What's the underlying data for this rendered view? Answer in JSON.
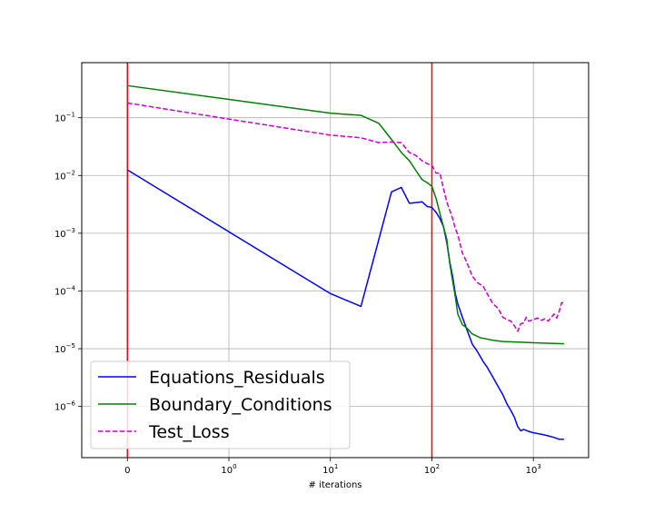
{
  "chart_data": {
    "type": "line",
    "title": "",
    "xlabel": "# iterations",
    "ylabel": "",
    "x_scale": "symlog",
    "y_scale": "log",
    "xlim": [
      -0.45,
      3500
    ],
    "ylim": [
      1.3e-07,
      0.9
    ],
    "grid": true,
    "legend_position": "lower-left",
    "x_ticks": [
      {
        "value": 0,
        "label": "0",
        "exp": ""
      },
      {
        "value": 1,
        "label": "10",
        "exp": "0"
      },
      {
        "value": 10,
        "label": "10",
        "exp": "1"
      },
      {
        "value": 100,
        "label": "10",
        "exp": "2"
      },
      {
        "value": 1000,
        "label": "10",
        "exp": "3"
      }
    ],
    "y_ticks": [
      {
        "value": 1e-06,
        "label": "10",
        "exp": "−6"
      },
      {
        "value": 1e-05,
        "label": "10",
        "exp": "−5"
      },
      {
        "value": 0.0001,
        "label": "10",
        "exp": "−4"
      },
      {
        "value": 0.001,
        "label": "10",
        "exp": "−3"
      },
      {
        "value": 0.01,
        "label": "10",
        "exp": "−2"
      },
      {
        "value": 0.1,
        "label": "10",
        "exp": "−1"
      }
    ],
    "vertical_lines": [
      {
        "x": 0,
        "color": "#ff0000"
      },
      {
        "x": 100,
        "color": "#ff0000"
      }
    ],
    "series": [
      {
        "name": "Equations_Residuals",
        "color": "#0000ff",
        "dash": "solid",
        "points": [
          [
            0,
            0.0125
          ],
          [
            10,
            9e-05
          ],
          [
            20,
            5.4e-05
          ],
          [
            40,
            0.0052
          ],
          [
            50,
            0.0062
          ],
          [
            60,
            0.0033
          ],
          [
            70,
            0.0034
          ],
          [
            80,
            0.0035
          ],
          [
            90,
            0.0029
          ],
          [
            100,
            0.0028
          ],
          [
            110,
            0.0023
          ],
          [
            120,
            0.0018
          ],
          [
            130,
            0.0013
          ],
          [
            140,
            0.0007
          ],
          [
            150,
            0.00032
          ],
          [
            160,
            0.00018
          ],
          [
            170,
            9e-05
          ],
          [
            180,
            6e-05
          ],
          [
            200,
            3.5e-05
          ],
          [
            220,
            2.2e-05
          ],
          [
            250,
            1.2e-05
          ],
          [
            280,
            9e-06
          ],
          [
            320,
            6e-06
          ],
          [
            350,
            4.8e-06
          ],
          [
            400,
            3.2e-06
          ],
          [
            450,
            2.2e-06
          ],
          [
            500,
            1.6e-06
          ],
          [
            550,
            1.1e-06
          ],
          [
            600,
            8.5e-07
          ],
          [
            650,
            6.5e-07
          ],
          [
            700,
            4.5e-07
          ],
          [
            750,
            3.8e-07
          ],
          [
            800,
            4e-07
          ],
          [
            900,
            3.7e-07
          ],
          [
            1000,
            3.5e-07
          ],
          [
            1200,
            3.3e-07
          ],
          [
            1400,
            3.1e-07
          ],
          [
            1600,
            2.9e-07
          ],
          [
            1800,
            2.7e-07
          ],
          [
            2000,
            2.7e-07
          ]
        ]
      },
      {
        "name": "Boundary_Conditions",
        "color": "#008000",
        "dash": "solid",
        "points": [
          [
            0,
            0.36
          ],
          [
            10,
            0.12
          ],
          [
            20,
            0.11
          ],
          [
            30,
            0.08
          ],
          [
            40,
            0.042
          ],
          [
            50,
            0.025
          ],
          [
            60,
            0.018
          ],
          [
            70,
            0.012
          ],
          [
            80,
            0.0085
          ],
          [
            90,
            0.0075
          ],
          [
            100,
            0.0065
          ],
          [
            110,
            0.004
          ],
          [
            120,
            0.0022
          ],
          [
            130,
            0.0013
          ],
          [
            140,
            0.0008
          ],
          [
            150,
            0.0003
          ],
          [
            160,
            0.00015
          ],
          [
            170,
            8e-05
          ],
          [
            180,
            4e-05
          ],
          [
            200,
            2.6e-05
          ],
          [
            220,
            2.3e-05
          ],
          [
            250,
            1.8e-05
          ],
          [
            300,
            1.55e-05
          ],
          [
            400,
            1.4e-05
          ],
          [
            500,
            1.33e-05
          ],
          [
            700,
            1.3e-05
          ],
          [
            1000,
            1.27e-05
          ],
          [
            1500,
            1.24e-05
          ],
          [
            2000,
            1.22e-05
          ]
        ]
      },
      {
        "name": "Test_Loss",
        "color": "#cc00cc",
        "dash": "dashed",
        "points": [
          [
            0,
            0.18
          ],
          [
            10,
            0.05
          ],
          [
            20,
            0.045
          ],
          [
            30,
            0.037
          ],
          [
            40,
            0.038
          ],
          [
            50,
            0.037
          ],
          [
            60,
            0.025
          ],
          [
            70,
            0.022
          ],
          [
            80,
            0.018
          ],
          [
            90,
            0.016
          ],
          [
            100,
            0.015
          ],
          [
            110,
            0.011
          ],
          [
            120,
            0.011
          ],
          [
            130,
            0.006
          ],
          [
            140,
            0.0035
          ],
          [
            150,
            0.0025
          ],
          [
            160,
            0.0018
          ],
          [
            170,
            0.0012
          ],
          [
            180,
            0.00095
          ],
          [
            200,
            0.00045
          ],
          [
            220,
            0.00032
          ],
          [
            250,
            0.00018
          ],
          [
            280,
            0.00014
          ],
          [
            320,
            0.00012
          ],
          [
            350,
            9e-05
          ],
          [
            400,
            6e-05
          ],
          [
            450,
            5e-05
          ],
          [
            500,
            3.5e-05
          ],
          [
            550,
            3.2e-05
          ],
          [
            600,
            3e-05
          ],
          [
            650,
            2.5e-05
          ],
          [
            700,
            2e-05
          ],
          [
            750,
            2.7e-05
          ],
          [
            800,
            2.8e-05
          ],
          [
            850,
            3.5e-05
          ],
          [
            900,
            3e-05
          ],
          [
            1000,
            3.2e-05
          ],
          [
            1100,
            3.4e-05
          ],
          [
            1200,
            3.1e-05
          ],
          [
            1300,
            3.3e-05
          ],
          [
            1400,
            3e-05
          ],
          [
            1500,
            3.5e-05
          ],
          [
            1600,
            4e-05
          ],
          [
            1700,
            3.4e-05
          ],
          [
            1800,
            4.5e-05
          ],
          [
            1900,
            6.3e-05
          ],
          [
            2000,
            6.1e-05
          ]
        ]
      }
    ]
  }
}
